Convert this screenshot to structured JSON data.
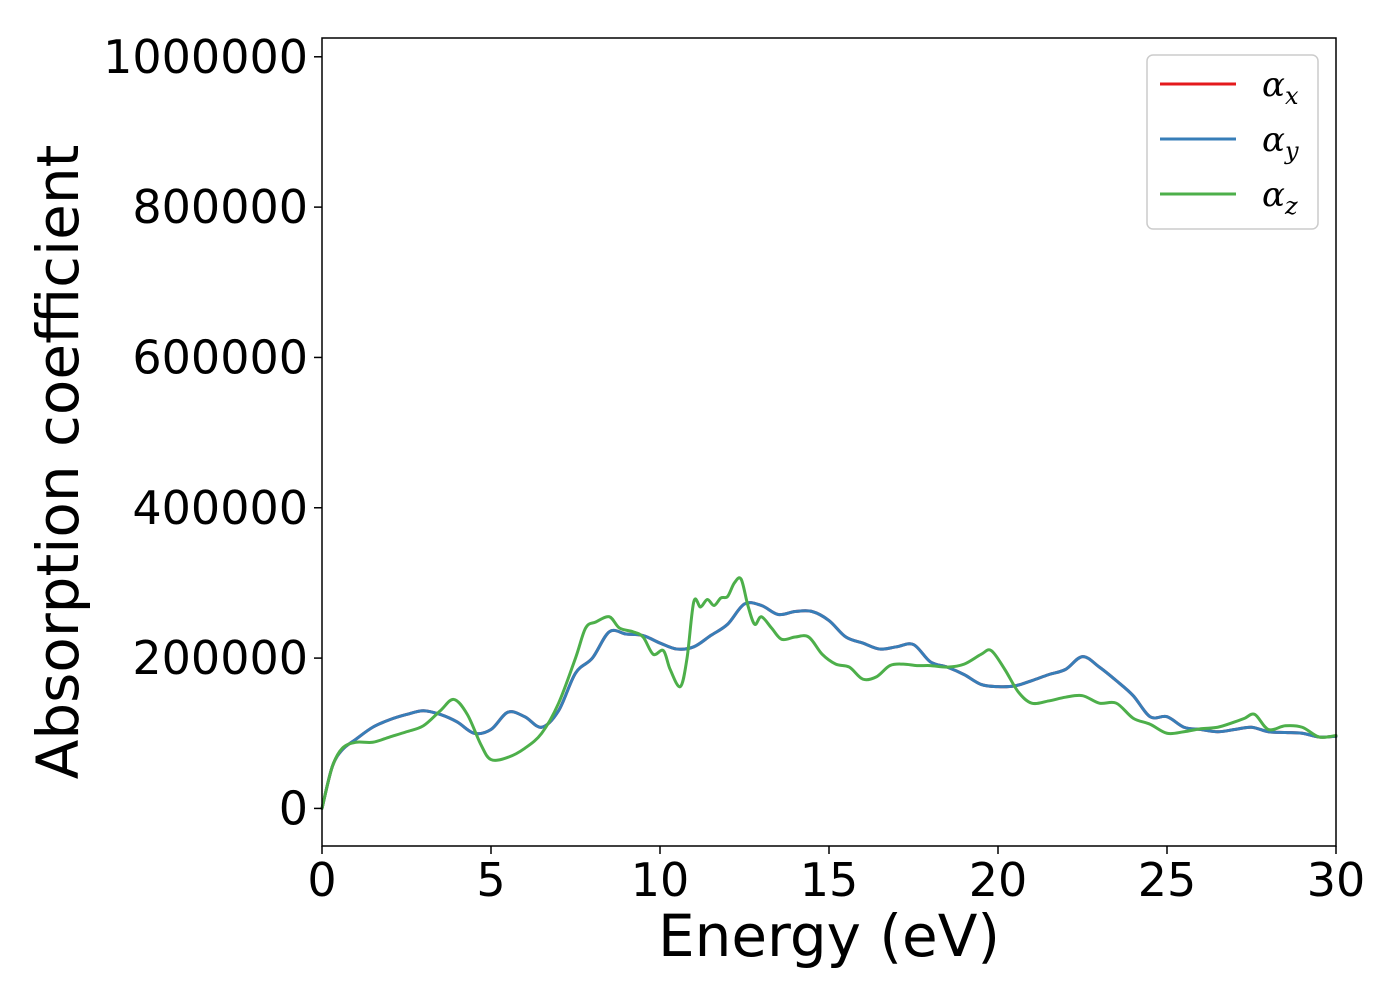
{
  "chart_data": {
    "type": "line",
    "title": "",
    "xlabel": "Energy (eV)",
    "ylabel": "Absorption coefficient",
    "xlim": [
      0,
      30
    ],
    "ylim": [
      -50000,
      1025000
    ],
    "xticks": [
      0,
      5,
      10,
      15,
      20,
      25,
      30
    ],
    "yticks": [
      0,
      200000,
      400000,
      600000,
      800000,
      1000000
    ],
    "xtick_labels": [
      "0",
      "5",
      "10",
      "15",
      "20",
      "25",
      "30"
    ],
    "ytick_labels": [
      "0",
      "200000",
      "400000",
      "600000",
      "800000",
      "1000000"
    ],
    "grid": false,
    "legend_position": "top-right",
    "series": [
      {
        "name_base": "α",
        "name_sub": "x",
        "color": "#e41a1c",
        "x": [
          0,
          0.3,
          0.6,
          1.0,
          1.5,
          2.0,
          2.5,
          3.0,
          3.5,
          4.0,
          4.5,
          5.0,
          5.5,
          6.0,
          6.5,
          7.0,
          7.5,
          8.0,
          8.5,
          9.0,
          9.5,
          10.0,
          10.5,
          11.0,
          11.5,
          12.0,
          12.5,
          13.0,
          13.5,
          14.0,
          14.5,
          15.0,
          15.5,
          16.0,
          16.5,
          17.0,
          17.5,
          18.0,
          18.5,
          19.0,
          19.5,
          20.0,
          20.5,
          21.0,
          21.5,
          22.0,
          22.5,
          23.0,
          23.5,
          24.0,
          24.5,
          25.0,
          25.5,
          26.0,
          26.5,
          27.0,
          27.5,
          28.0,
          28.5,
          29.0,
          29.5,
          30.0
        ],
        "y": [
          0,
          55000,
          78000,
          92000,
          108000,
          118000,
          125000,
          130000,
          125000,
          115000,
          100000,
          105000,
          128000,
          122000,
          108000,
          130000,
          180000,
          200000,
          235000,
          232000,
          230000,
          220000,
          212000,
          215000,
          230000,
          245000,
          272000,
          270000,
          258000,
          262000,
          262000,
          250000,
          228000,
          220000,
          212000,
          215000,
          218000,
          195000,
          188000,
          178000,
          165000,
          162000,
          163000,
          170000,
          178000,
          185000,
          202000,
          188000,
          170000,
          150000,
          122000,
          122000,
          108000,
          105000,
          102000,
          105000,
          108000,
          102000,
          101000,
          100000,
          95000,
          96000
        ]
      },
      {
        "name_base": "α",
        "name_sub": "y",
        "color": "#377eb8",
        "x": [
          0,
          0.3,
          0.6,
          1.0,
          1.5,
          2.0,
          2.5,
          3.0,
          3.5,
          4.0,
          4.5,
          5.0,
          5.5,
          6.0,
          6.5,
          7.0,
          7.5,
          8.0,
          8.5,
          9.0,
          9.5,
          10.0,
          10.5,
          11.0,
          11.5,
          12.0,
          12.5,
          13.0,
          13.5,
          14.0,
          14.5,
          15.0,
          15.5,
          16.0,
          16.5,
          17.0,
          17.5,
          18.0,
          18.5,
          19.0,
          19.5,
          20.0,
          20.5,
          21.0,
          21.5,
          22.0,
          22.5,
          23.0,
          23.5,
          24.0,
          24.5,
          25.0,
          25.5,
          26.0,
          26.5,
          27.0,
          27.5,
          28.0,
          28.5,
          29.0,
          29.5,
          30.0
        ],
        "y": [
          0,
          55000,
          78000,
          92000,
          108000,
          118000,
          125000,
          130000,
          125000,
          115000,
          100000,
          105000,
          128000,
          122000,
          108000,
          130000,
          180000,
          200000,
          235000,
          232000,
          230000,
          220000,
          212000,
          215000,
          230000,
          245000,
          272000,
          270000,
          258000,
          262000,
          262000,
          250000,
          228000,
          220000,
          212000,
          215000,
          218000,
          195000,
          188000,
          178000,
          165000,
          162000,
          163000,
          170000,
          178000,
          185000,
          202000,
          188000,
          170000,
          150000,
          122000,
          122000,
          108000,
          105000,
          102000,
          105000,
          108000,
          102000,
          101000,
          100000,
          95000,
          96000
        ]
      },
      {
        "name_base": "α",
        "name_sub": "z",
        "color": "#4daf4a",
        "x": [
          0,
          0.3,
          0.6,
          1.0,
          1.5,
          2.0,
          2.5,
          3.0,
          3.5,
          3.9,
          4.3,
          4.7,
          5.0,
          5.5,
          6.0,
          6.5,
          7.0,
          7.5,
          7.8,
          8.1,
          8.5,
          8.8,
          9.2,
          9.5,
          9.8,
          10.1,
          10.3,
          10.6,
          10.8,
          11.0,
          11.2,
          11.4,
          11.6,
          11.8,
          12.0,
          12.2,
          12.4,
          12.6,
          12.8,
          13.0,
          13.3,
          13.6,
          14.0,
          14.4,
          14.8,
          15.2,
          15.6,
          16.0,
          16.4,
          16.8,
          17.2,
          17.6,
          18.0,
          18.5,
          19.0,
          19.5,
          19.8,
          20.2,
          20.6,
          21.0,
          21.5,
          22.0,
          22.5,
          23.0,
          23.5,
          24.0,
          24.5,
          25.0,
          25.5,
          26.0,
          26.5,
          27.0,
          27.3,
          27.6,
          28.0,
          28.5,
          29.0,
          29.5,
          30.0
        ],
        "y": [
          0,
          55000,
          80000,
          88000,
          88000,
          95000,
          102000,
          110000,
          130000,
          145000,
          125000,
          85000,
          65000,
          68000,
          80000,
          100000,
          140000,
          200000,
          240000,
          248000,
          255000,
          240000,
          235000,
          228000,
          205000,
          210000,
          185000,
          162000,
          200000,
          275000,
          268000,
          278000,
          270000,
          280000,
          282000,
          300000,
          305000,
          270000,
          245000,
          255000,
          240000,
          225000,
          228000,
          228000,
          205000,
          192000,
          188000,
          172000,
          175000,
          190000,
          192000,
          190000,
          190000,
          188000,
          192000,
          205000,
          210000,
          185000,
          155000,
          140000,
          143000,
          148000,
          150000,
          140000,
          140000,
          120000,
          112000,
          100000,
          102000,
          106000,
          108000,
          115000,
          120000,
          125000,
          105000,
          110000,
          108000,
          95000,
          97000
        ]
      }
    ]
  }
}
